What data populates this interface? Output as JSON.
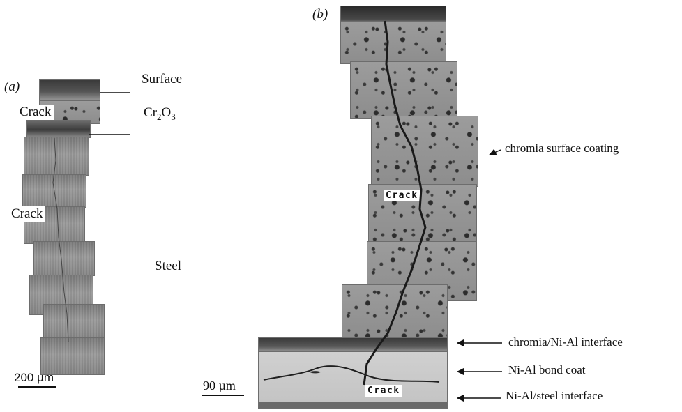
{
  "panel_a": {
    "letter": "(a)",
    "labels": {
      "surface": "Surface",
      "oxide_main": "Cr",
      "oxide_sub1": "2",
      "oxide_o": "O",
      "oxide_sub2": "3",
      "steel": "Steel"
    },
    "crack_tags": [
      "Crack",
      "Crack"
    ],
    "scale_bar": "200 µm"
  },
  "panel_b": {
    "letter": "(b)",
    "annotations": {
      "coating": "chromia surface coating",
      "interface_top": "chromia/Ni-Al interface",
      "bond_coat": "Ni-Al bond coat",
      "interface_bottom": "Ni-Al/steel interface"
    },
    "crack_tags": [
      "Crack",
      "Crack"
    ],
    "scale_bar": "90 µm"
  }
}
